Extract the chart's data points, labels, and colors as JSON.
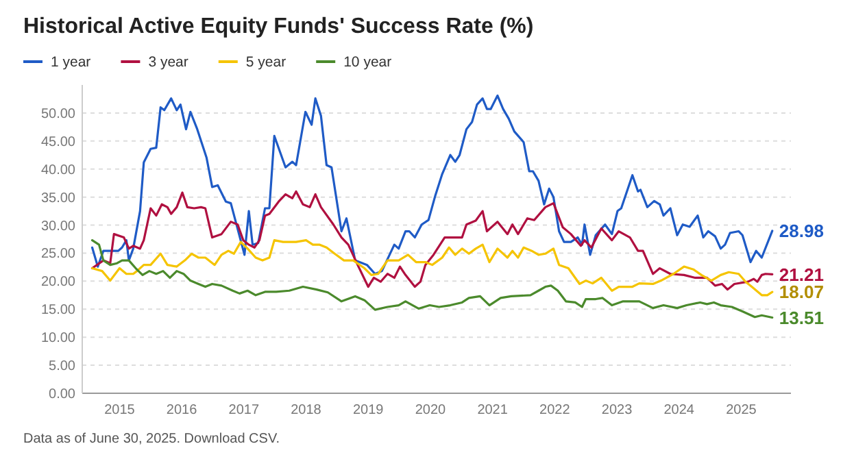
{
  "chart_data": {
    "type": "line",
    "title": "Historical Active Equity Funds' Success Rate (%)",
    "annotations": [
      "Data as of June 30, 2025. Download CSV."
    ],
    "xlim": [
      2014.4,
      2025.8
    ],
    "xticks": [
      2015,
      2016,
      2017,
      2018,
      2019,
      2020,
      2021,
      2022,
      2023,
      2024,
      2025
    ],
    "ylim": [
      0,
      55
    ],
    "yticks": [
      {
        "value": 0,
        "label": "0.00"
      },
      {
        "value": 5,
        "label": "5.00"
      },
      {
        "value": 10,
        "label": "10.00"
      },
      {
        "value": 15,
        "label": "15.00"
      },
      {
        "value": 20,
        "label": "20.00"
      },
      {
        "value": 25,
        "label": "25.00"
      },
      {
        "value": 30,
        "label": "30.00"
      },
      {
        "value": 35,
        "label": "35.00"
      },
      {
        "value": 40,
        "label": "40.00"
      },
      {
        "value": 45,
        "label": "45.00"
      },
      {
        "value": 50,
        "label": "50.00"
      }
    ],
    "grid": "y",
    "legend": "top left",
    "marker": "none",
    "line_style": "solid",
    "series": [
      {
        "name": "1 year",
        "color": "#1f5bc6",
        "x": [
          2014.56,
          2014.65,
          2014.74,
          2014.85,
          2014.98,
          2015.04,
          2015.11,
          2015.15,
          2015.22,
          2015.33,
          2015.39,
          2015.5,
          2015.59,
          2015.66,
          2015.72,
          2015.83,
          2015.92,
          2015.98,
          2016.07,
          2016.14,
          2016.25,
          2016.4,
          2016.49,
          2016.58,
          2016.71,
          2016.79,
          2017.01,
          2017.08,
          2017.14,
          2017.23,
          2017.34,
          2017.41,
          2017.49,
          2017.67,
          2017.78,
          2017.84,
          2017.99,
          2018.09,
          2018.15,
          2018.24,
          2018.33,
          2018.41,
          2018.57,
          2018.65,
          2018.79,
          2018.98,
          2019.11,
          2019.22,
          2019.42,
          2019.49,
          2019.6,
          2019.66,
          2019.75,
          2019.86,
          2019.97,
          2020.08,
          2020.19,
          2020.32,
          2020.4,
          2020.47,
          2020.58,
          2020.67,
          2020.75,
          2020.84,
          2020.91,
          2020.97,
          2021.08,
          2021.17,
          2021.26,
          2021.35,
          2021.5,
          2021.59,
          2021.65,
          2021.74,
          2021.83,
          2021.91,
          2021.98,
          2022.07,
          2022.15,
          2022.26,
          2022.37,
          2022.44,
          2022.48,
          2022.57,
          2022.66,
          2022.81,
          2022.92,
          2023.01,
          2023.07,
          2023.25,
          2023.34,
          2023.38,
          2023.49,
          2023.6,
          2023.69,
          2023.75,
          2023.86,
          2023.97,
          2024.06,
          2024.17,
          2024.3,
          2024.39,
          2024.47,
          2024.58,
          2024.67,
          2024.74,
          2024.82,
          2024.96,
          2025.02,
          2025.15,
          2025.24,
          2025.33,
          2025.5
        ],
        "values": [
          26.0,
          22.6,
          25.4,
          25.4,
          25.4,
          26.0,
          27.3,
          23.7,
          25.8,
          32.5,
          41.2,
          43.6,
          43.8,
          51.0,
          50.5,
          52.6,
          50.5,
          51.5,
          47.1,
          50.2,
          47.1,
          42.0,
          36.8,
          37.1,
          34.2,
          33.9,
          24.7,
          32.5,
          26.5,
          26.8,
          33.0,
          33.0,
          45.9,
          40.3,
          41.3,
          40.7,
          50.2,
          47.9,
          52.6,
          49.5,
          40.7,
          40.3,
          28.9,
          31.2,
          23.7,
          22.9,
          21.3,
          21.8,
          26.5,
          25.8,
          28.9,
          28.9,
          27.8,
          30.1,
          30.9,
          35.3,
          39.1,
          42.5,
          41.3,
          42.5,
          47.1,
          48.4,
          51.5,
          52.6,
          50.7,
          50.7,
          53.1,
          50.7,
          49.0,
          46.7,
          44.8,
          39.6,
          39.6,
          37.9,
          33.7,
          36.5,
          35.0,
          28.9,
          27.0,
          27.0,
          27.8,
          26.5,
          30.1,
          24.7,
          28.2,
          30.1,
          28.4,
          32.5,
          33.0,
          38.9,
          36.0,
          36.3,
          33.2,
          34.3,
          33.7,
          31.7,
          33.0,
          28.2,
          30.1,
          29.7,
          31.7,
          27.8,
          28.9,
          28.0,
          25.8,
          26.5,
          28.6,
          28.9,
          28.2,
          23.4,
          25.4,
          24.2,
          28.98
        ],
        "value_labels": [
          null,
          null,
          null,
          null,
          null,
          null,
          null,
          null,
          null,
          null,
          null,
          null,
          null,
          null,
          null,
          null,
          null,
          null,
          null,
          null,
          null,
          null,
          null,
          null,
          null,
          null,
          null,
          null,
          null,
          null,
          null,
          null,
          null,
          null,
          null,
          null,
          null,
          null,
          null,
          null,
          null,
          null,
          null,
          null,
          null,
          null,
          null,
          null,
          null,
          null,
          null,
          null,
          null,
          null,
          null,
          null,
          null,
          null,
          null,
          null,
          null,
          null,
          null,
          null,
          null,
          null,
          null,
          null,
          null,
          null,
          null,
          null,
          null,
          null,
          null,
          null,
          null,
          null,
          null,
          null,
          null,
          null,
          null,
          null,
          null,
          null,
          null,
          null,
          null,
          null,
          null,
          null,
          null,
          null,
          null,
          null,
          null,
          null,
          null,
          null,
          null,
          null,
          null,
          null,
          null,
          null,
          null,
          null,
          null,
          null,
          null,
          null,
          "28.98"
        ]
      },
      {
        "name": "3 year",
        "color": "#b01040",
        "x": [
          2014.56,
          2014.74,
          2014.85,
          2014.91,
          2015.07,
          2015.15,
          2015.22,
          2015.33,
          2015.39,
          2015.5,
          2015.59,
          2015.68,
          2015.77,
          2015.83,
          2015.92,
          2016.01,
          2016.09,
          2016.2,
          2016.31,
          2016.38,
          2016.49,
          2016.64,
          2016.79,
          2016.9,
          2016.99,
          2017.08,
          2017.17,
          2017.25,
          2017.34,
          2017.41,
          2017.56,
          2017.67,
          2017.78,
          2017.84,
          2017.95,
          2018.06,
          2018.15,
          2018.24,
          2018.44,
          2018.57,
          2018.68,
          2018.83,
          2019.0,
          2019.09,
          2019.2,
          2019.31,
          2019.42,
          2019.51,
          2019.6,
          2019.75,
          2019.84,
          2019.92,
          2020.05,
          2020.23,
          2020.32,
          2020.51,
          2020.58,
          2020.73,
          2020.84,
          2020.91,
          2021.08,
          2021.24,
          2021.32,
          2021.41,
          2021.56,
          2021.67,
          2021.85,
          2021.98,
          2022.13,
          2022.26,
          2022.42,
          2022.48,
          2022.59,
          2022.75,
          2022.92,
          2023.03,
          2023.21,
          2023.34,
          2023.42,
          2023.58,
          2023.69,
          2023.86,
          2024.08,
          2024.26,
          2024.45,
          2024.58,
          2024.69,
          2024.78,
          2024.89,
          2025.11,
          2025.2,
          2025.26,
          2025.33,
          2025.39,
          2025.5
        ],
        "values": [
          22.3,
          23.7,
          23.2,
          28.4,
          27.8,
          25.8,
          26.3,
          25.8,
          27.3,
          33.0,
          31.7,
          33.7,
          33.2,
          32.0,
          33.2,
          35.8,
          33.2,
          33.0,
          33.2,
          33.0,
          27.8,
          28.4,
          30.6,
          30.1,
          27.3,
          26.5,
          26.0,
          27.3,
          31.7,
          32.0,
          34.2,
          35.5,
          34.8,
          36.0,
          33.7,
          33.2,
          35.5,
          33.2,
          30.1,
          27.8,
          26.5,
          22.9,
          19.0,
          20.6,
          19.9,
          21.3,
          20.6,
          22.6,
          21.1,
          19.0,
          19.9,
          22.9,
          24.7,
          27.8,
          27.8,
          27.8,
          30.1,
          30.8,
          32.5,
          28.9,
          30.6,
          28.4,
          30.1,
          28.4,
          31.2,
          30.9,
          33.2,
          33.9,
          29.6,
          28.4,
          26.3,
          27.3,
          26.0,
          29.4,
          27.3,
          28.9,
          27.8,
          25.4,
          25.4,
          21.3,
          22.3,
          21.3,
          21.1,
          20.6,
          20.6,
          19.2,
          19.5,
          18.5,
          19.5,
          19.9,
          20.4,
          19.9,
          21.1,
          21.3,
          21.21
        ],
        "value_labels": [
          null,
          null,
          null,
          null,
          null,
          null,
          null,
          null,
          null,
          null,
          null,
          null,
          null,
          null,
          null,
          null,
          null,
          null,
          null,
          null,
          null,
          null,
          null,
          null,
          null,
          null,
          null,
          null,
          null,
          null,
          null,
          null,
          null,
          null,
          null,
          null,
          null,
          null,
          null,
          null,
          null,
          null,
          null,
          null,
          null,
          null,
          null,
          null,
          null,
          null,
          null,
          null,
          null,
          null,
          null,
          null,
          null,
          null,
          null,
          null,
          null,
          null,
          null,
          null,
          null,
          null,
          null,
          null,
          null,
          null,
          null,
          null,
          null,
          null,
          null,
          null,
          null,
          null,
          null,
          null,
          null,
          null,
          null,
          null,
          null,
          null,
          null,
          null,
          null,
          null,
          null,
          null,
          null,
          null,
          "21.21"
        ]
      },
      {
        "name": "5 year",
        "color": "#f5c400",
        "x": [
          2014.56,
          2014.72,
          2014.85,
          2015.0,
          2015.11,
          2015.22,
          2015.28,
          2015.39,
          2015.5,
          2015.66,
          2015.77,
          2015.92,
          2016.05,
          2016.16,
          2016.27,
          2016.38,
          2016.53,
          2016.64,
          2016.75,
          2016.84,
          2016.95,
          2017.06,
          2017.19,
          2017.3,
          2017.41,
          2017.49,
          2017.63,
          2017.84,
          2018.0,
          2018.11,
          2018.22,
          2018.33,
          2018.46,
          2018.61,
          2018.76,
          2018.94,
          2019.05,
          2019.16,
          2019.31,
          2019.49,
          2019.64,
          2019.77,
          2019.92,
          2020.03,
          2020.19,
          2020.3,
          2020.4,
          2020.51,
          2020.62,
          2020.73,
          2020.84,
          2020.95,
          2021.08,
          2021.24,
          2021.32,
          2021.41,
          2021.5,
          2021.63,
          2021.74,
          2021.85,
          2021.98,
          2022.07,
          2022.22,
          2022.4,
          2022.5,
          2022.61,
          2022.75,
          2022.92,
          2023.03,
          2023.25,
          2023.36,
          2023.58,
          2023.71,
          2023.91,
          2024.08,
          2024.23,
          2024.36,
          2024.52,
          2024.67,
          2024.8,
          2024.96,
          2025.07,
          2025.17,
          2025.33,
          2025.42,
          2025.5
        ],
        "values": [
          22.3,
          21.8,
          20.1,
          22.3,
          21.3,
          21.3,
          21.8,
          22.9,
          22.9,
          24.9,
          22.9,
          22.6,
          23.7,
          24.9,
          24.2,
          24.2,
          22.9,
          24.7,
          25.4,
          24.9,
          27.0,
          25.8,
          24.2,
          23.7,
          24.2,
          27.3,
          27.0,
          27.0,
          27.3,
          26.5,
          26.5,
          26.0,
          24.9,
          23.7,
          23.7,
          22.3,
          21.1,
          21.3,
          23.7,
          23.7,
          24.7,
          23.4,
          23.4,
          22.9,
          24.2,
          26.0,
          24.7,
          25.8,
          24.9,
          25.8,
          26.5,
          23.4,
          25.8,
          24.2,
          25.4,
          24.2,
          26.0,
          25.4,
          24.7,
          24.9,
          25.8,
          22.9,
          22.3,
          19.5,
          20.1,
          19.6,
          20.6,
          18.3,
          19.0,
          19.0,
          19.6,
          19.5,
          20.1,
          21.3,
          22.6,
          22.1,
          21.1,
          20.1,
          21.1,
          21.6,
          21.3,
          19.9,
          19.0,
          17.5,
          17.5,
          18.07
        ],
        "value_labels": [
          null,
          null,
          null,
          null,
          null,
          null,
          null,
          null,
          null,
          null,
          null,
          null,
          null,
          null,
          null,
          null,
          null,
          null,
          null,
          null,
          null,
          null,
          null,
          null,
          null,
          null,
          null,
          null,
          null,
          null,
          null,
          null,
          null,
          null,
          null,
          null,
          null,
          null,
          null,
          null,
          null,
          null,
          null,
          null,
          null,
          null,
          null,
          null,
          null,
          null,
          null,
          null,
          null,
          null,
          null,
          null,
          null,
          null,
          null,
          null,
          null,
          null,
          null,
          null,
          null,
          null,
          null,
          null,
          null,
          null,
          null,
          null,
          null,
          null,
          null,
          null,
          null,
          null,
          null,
          null,
          null,
          null,
          null,
          null,
          null,
          "18.07"
        ]
      },
      {
        "name": "10 year",
        "color": "#4b8a2c",
        "x": [
          2014.56,
          2014.67,
          2014.74,
          2014.85,
          2014.96,
          2015.04,
          2015.15,
          2015.26,
          2015.37,
          2015.48,
          2015.59,
          2015.7,
          2015.81,
          2015.92,
          2016.03,
          2016.14,
          2016.27,
          2016.38,
          2016.49,
          2016.64,
          2016.82,
          2016.93,
          2017.06,
          2017.19,
          2017.34,
          2017.52,
          2017.73,
          2017.95,
          2018.17,
          2018.35,
          2018.57,
          2018.79,
          2018.94,
          2019.11,
          2019.31,
          2019.49,
          2019.6,
          2019.81,
          2019.99,
          2020.14,
          2020.32,
          2020.51,
          2020.62,
          2020.8,
          2020.95,
          2021.13,
          2021.3,
          2021.61,
          2021.74,
          2021.85,
          2021.94,
          2022.05,
          2022.18,
          2022.33,
          2022.44,
          2022.5,
          2022.66,
          2022.77,
          2022.92,
          2023.1,
          2023.36,
          2023.58,
          2023.75,
          2023.97,
          2024.12,
          2024.34,
          2024.45,
          2024.56,
          2024.67,
          2024.85,
          2025.02,
          2025.22,
          2025.33,
          2025.5
        ],
        "values": [
          27.3,
          26.5,
          23.7,
          22.9,
          23.2,
          23.7,
          23.7,
          22.3,
          21.1,
          21.8,
          21.3,
          21.8,
          20.6,
          21.8,
          21.3,
          20.1,
          19.5,
          19.0,
          19.5,
          19.2,
          18.3,
          17.8,
          18.3,
          17.5,
          18.1,
          18.1,
          18.3,
          19.0,
          18.5,
          18.0,
          16.4,
          17.3,
          16.6,
          14.9,
          15.4,
          15.7,
          16.4,
          15.1,
          15.7,
          15.4,
          15.7,
          16.2,
          17.0,
          17.3,
          15.7,
          17.0,
          17.3,
          17.5,
          18.3,
          19.0,
          19.2,
          18.3,
          16.4,
          16.2,
          15.4,
          16.8,
          16.8,
          17.0,
          15.7,
          16.4,
          16.4,
          15.2,
          15.7,
          15.2,
          15.7,
          16.2,
          15.9,
          16.2,
          15.7,
          15.4,
          14.6,
          13.6,
          13.9,
          13.51
        ],
        "value_labels": [
          null,
          null,
          null,
          null,
          null,
          null,
          null,
          null,
          null,
          null,
          null,
          null,
          null,
          null,
          null,
          null,
          null,
          null,
          null,
          null,
          null,
          null,
          null,
          null,
          null,
          null,
          null,
          null,
          null,
          null,
          null,
          null,
          null,
          null,
          null,
          null,
          null,
          null,
          null,
          null,
          null,
          null,
          null,
          null,
          null,
          null,
          null,
          null,
          null,
          null,
          null,
          null,
          null,
          null,
          null,
          null,
          null,
          null,
          null,
          null,
          null,
          null,
          null,
          null,
          null,
          null,
          null,
          null,
          null,
          null,
          null,
          null,
          null,
          "13.51"
        ]
      }
    ]
  }
}
